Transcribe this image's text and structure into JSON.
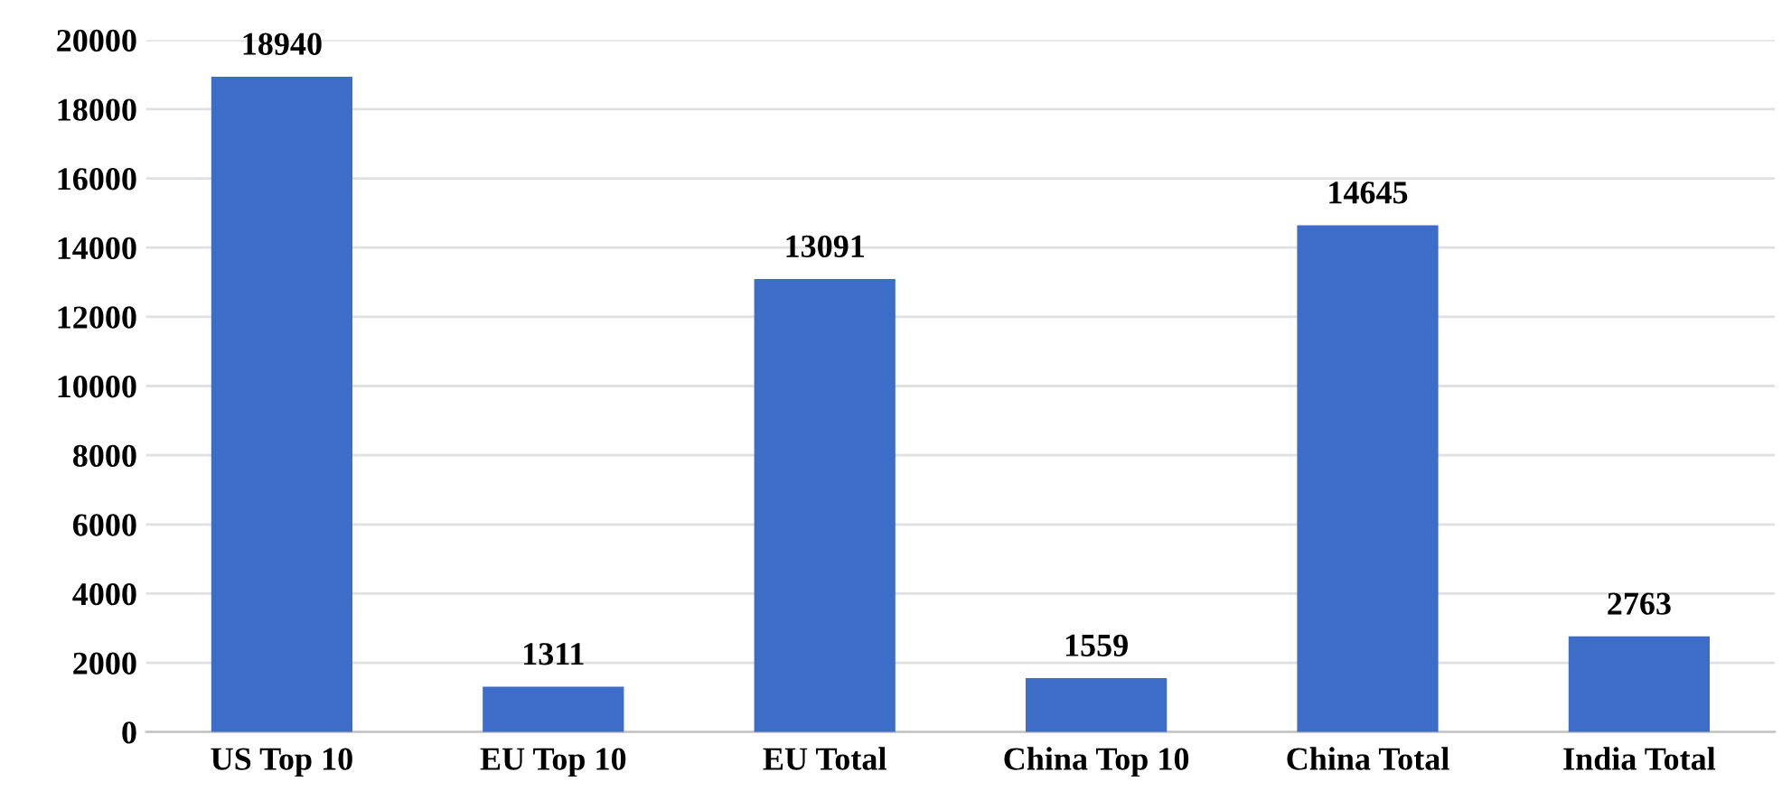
{
  "chart_data": {
    "type": "bar",
    "categories": [
      "US Top 10",
      "EU Top 10",
      "EU Total",
      "China Top 10",
      "China Total",
      "India Total"
    ],
    "values": [
      18940,
      1311,
      13091,
      1559,
      14645,
      2763
    ],
    "color": "#3d6cc9",
    "ylim": [
      0,
      20000
    ],
    "yticks": [
      0,
      2000,
      4000,
      6000,
      8000,
      10000,
      12000,
      14000,
      16000,
      18000,
      20000
    ],
    "grid": "y",
    "data_labels": true
  }
}
